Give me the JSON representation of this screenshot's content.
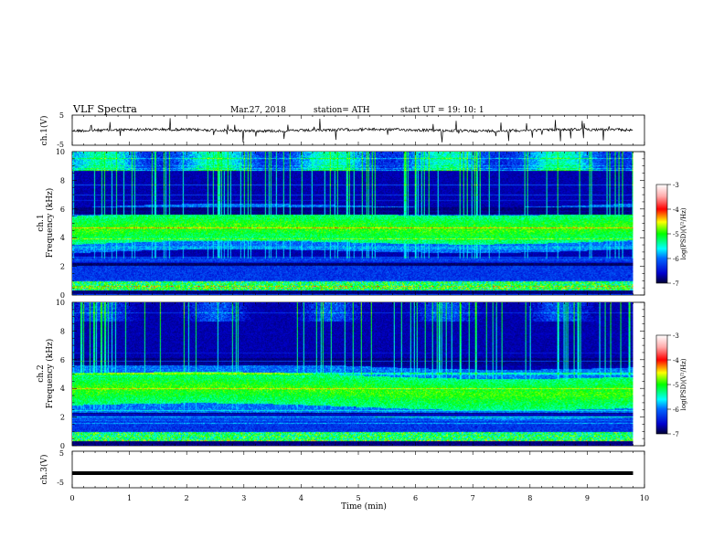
{
  "header": {
    "title": "VLF  Spectra",
    "date": "Mar.27, 2018",
    "station": "station= ATH",
    "start_ut": "start  UT  =    19: 10: 1"
  },
  "panels": {
    "ch1_wave": {
      "ylabel": "ch.1(V)",
      "yticks": [
        "5",
        "-5"
      ]
    },
    "ch1_spec": {
      "ylabel_top": "ch.1",
      "ylabel": "Frequency  (kHz)",
      "yticks": [
        "0",
        "2",
        "4",
        "6",
        "8",
        "10"
      ]
    },
    "ch2_spec": {
      "ylabel_top": "ch.2",
      "ylabel": "Frequency  (kHz)",
      "yticks": [
        "0",
        "2",
        "4",
        "6",
        "8",
        "10"
      ]
    },
    "ch3_wave": {
      "ylabel": "ch.3(V)",
      "yticks": [
        "5",
        "-5"
      ]
    }
  },
  "colorbar": {
    "label": "log(PSD)(V²/Hz)",
    "ticks": [
      "-3",
      "-4",
      "-5",
      "-6",
      "-7"
    ],
    "colors": [
      "#ffffff",
      "#ff0000",
      "#ffff00",
      "#00ff00",
      "#00ffff",
      "#0000ff",
      "#000033"
    ]
  },
  "xaxis": {
    "label": "Time  (min)",
    "ticks": [
      "0",
      "1",
      "2",
      "3",
      "4",
      "5",
      "6",
      "7",
      "8",
      "9",
      "10"
    ]
  },
  "chart_data": {
    "type": "heatmap",
    "title": "VLF  Spectra",
    "xlabel": "Time  (min)",
    "xlim": [
      0,
      10
    ],
    "data_end_min": 9.8,
    "ch1_voltage": {
      "ylim": [
        -5,
        5
      ],
      "mean_level_V": 0
    },
    "ch3_voltage": {
      "ylim": [
        -5,
        5
      ],
      "mean_level_V": -1
    },
    "spectrograms": [
      {
        "name": "ch.1",
        "ylabel": "Frequency  (kHz)",
        "ylim": [
          0,
          10
        ],
        "band_kHz": [
          3.5,
          5.5
        ]
      },
      {
        "name": "ch.2",
        "ylabel": "Frequency  (kHz)",
        "ylim": [
          0,
          10
        ],
        "band_kHz": [
          2.8,
          5.0
        ]
      }
    ],
    "colorscale": {
      "label": "log(PSD)(V²/Hz)",
      "range": [
        -7,
        -3
      ]
    }
  }
}
